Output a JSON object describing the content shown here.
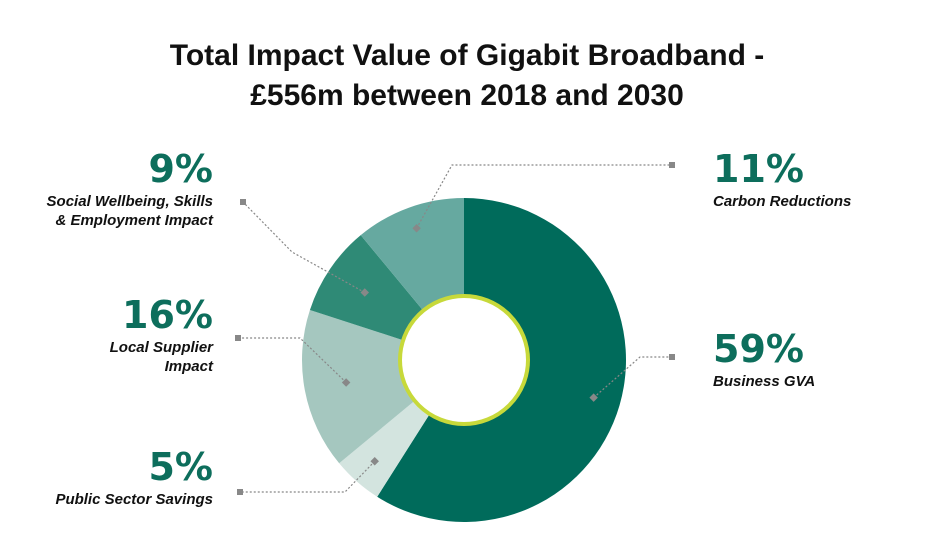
{
  "title": {
    "line1": "Total Impact Value of Gigabit Broadband -",
    "line2": "£556m between 2018 and 2030"
  },
  "chart_data": {
    "type": "pie",
    "title": "Total Impact Value of Gigabit Broadband - £556m between 2018 and 2030",
    "slices": [
      {
        "name": "Business GVA",
        "label_lines": [
          "Business GVA"
        ],
        "value": 59,
        "percent_label": "59%",
        "color": "#006b5b"
      },
      {
        "name": "Public Sector Savings",
        "label_lines": [
          "Public Sector Savings"
        ],
        "value": 5,
        "percent_label": "5%",
        "color": "#d3e4df"
      },
      {
        "name": "Local Supplier Impact",
        "label_lines": [
          "Local Supplier",
          "Impact"
        ],
        "value": 16,
        "percent_label": "16%",
        "color": "#a5c7bf"
      },
      {
        "name": "Social Wellbeing, Skills & Employment Impact",
        "label_lines": [
          "Social Wellbeing, Skills",
          "& Employment Impact"
        ],
        "value": 9,
        "percent_label": "9%",
        "color": "#2f8a76"
      },
      {
        "name": "Carbon Reductions",
        "label_lines": [
          "Carbon Reductions"
        ],
        "value": 11,
        "percent_label": "11%",
        "color": "#66a9a0"
      }
    ],
    "center_ring_color": "#c7d93a",
    "leader_color": "#888888"
  }
}
